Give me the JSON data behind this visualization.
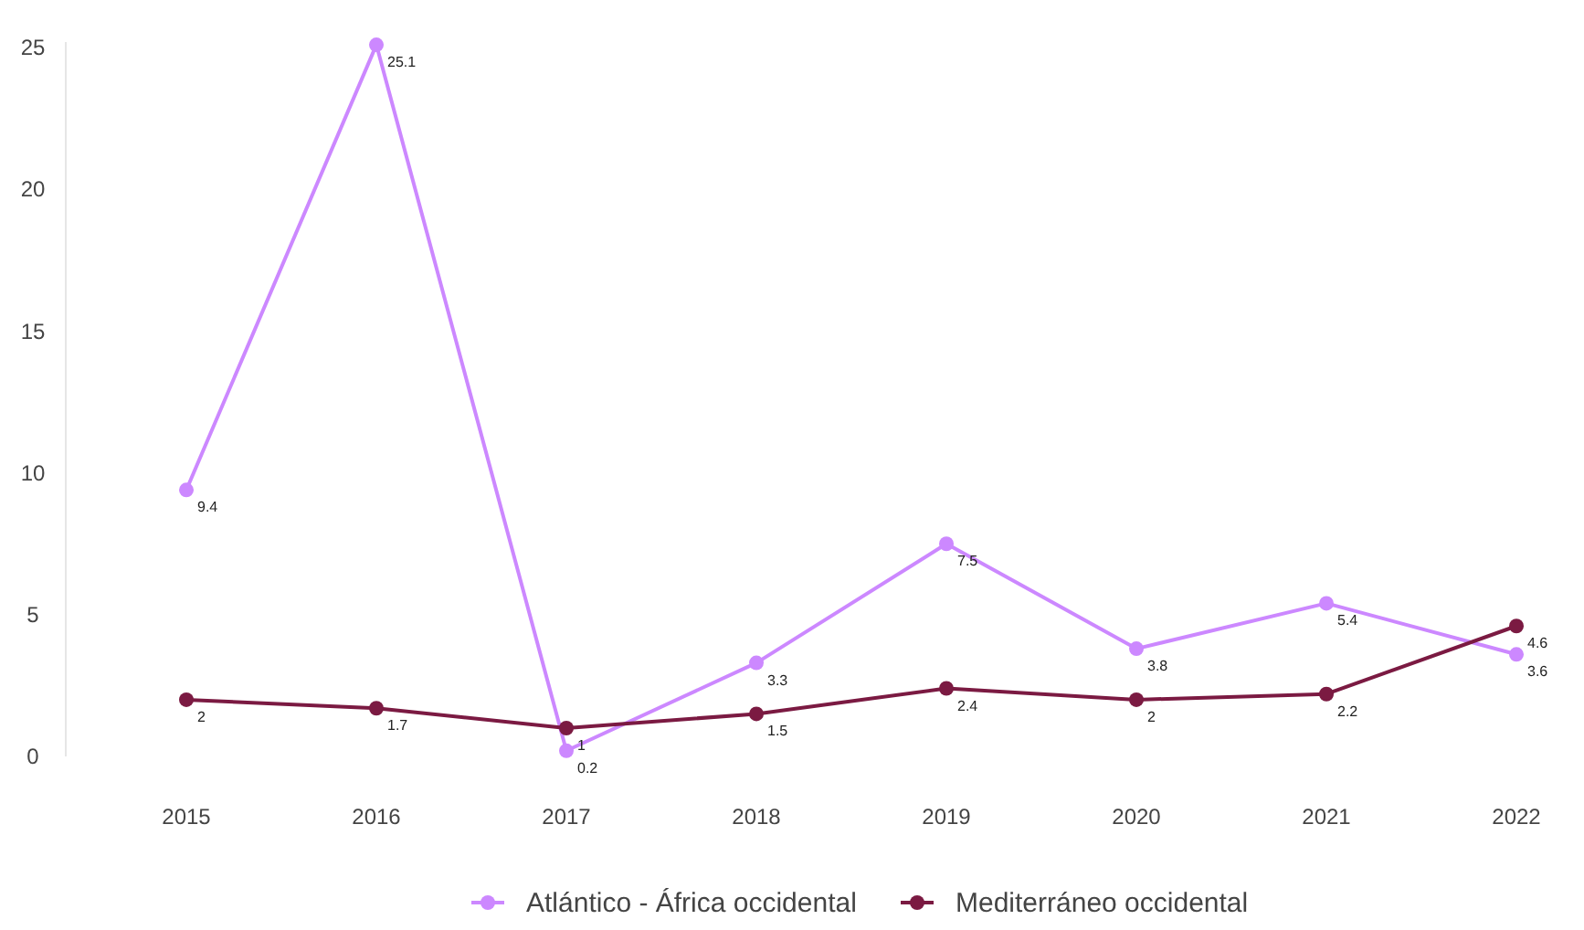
{
  "chart_data": {
    "type": "line",
    "categories": [
      "2015",
      "2016",
      "2017",
      "2018",
      "2019",
      "2020",
      "2021",
      "2022"
    ],
    "series": [
      {
        "name": "Atlántico - África occidental",
        "color": "#cc88ff",
        "values": [
          9.4,
          25.1,
          0.2,
          3.3,
          7.5,
          3.8,
          5.4,
          3.6
        ]
      },
      {
        "name": "Mediterráneo occidental",
        "color": "#7b1a42",
        "values": [
          2,
          1.7,
          1,
          1.5,
          2.4,
          2,
          2.2,
          4.6
        ]
      }
    ],
    "ylim": [
      0,
      25.2
    ],
    "yticks": [
      0,
      5,
      10,
      15,
      20,
      25
    ],
    "grid": false,
    "legend": "bottom",
    "marker": "circle",
    "line_style": "solid",
    "data_labels": true
  }
}
